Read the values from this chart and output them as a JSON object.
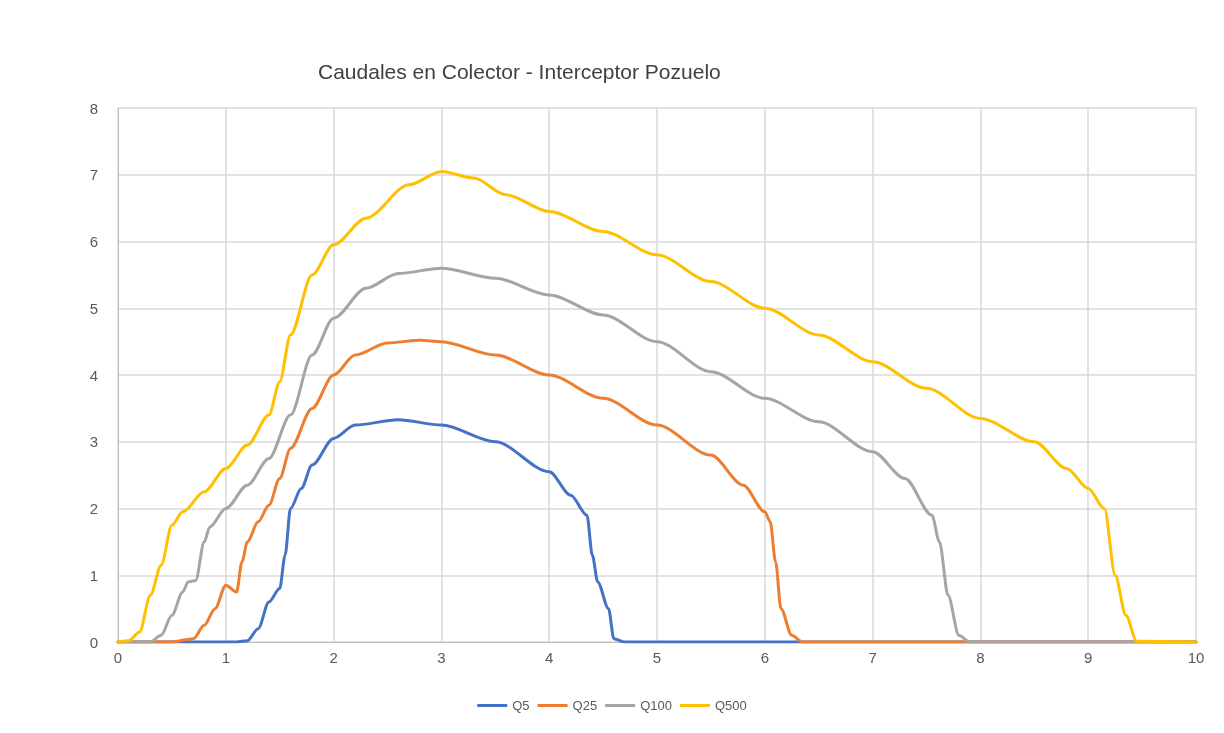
{
  "chart_data": {
    "type": "line",
    "title": "Caudales en Colector - Interceptor Pozuelo",
    "xlim": [
      0,
      10
    ],
    "xticks": [
      0,
      1,
      2,
      3,
      4,
      5,
      6,
      7,
      8,
      9,
      10
    ],
    "ylim": [
      0,
      8
    ],
    "yticks": [
      0,
      1,
      2,
      3,
      4,
      5,
      6,
      7,
      8
    ],
    "grid": true,
    "legend": "bottom",
    "marker": "none",
    "line_style": "solid",
    "series": [
      {
        "name": "Q5",
        "color": "#4472c4",
        "x": [
          0,
          1.1,
          1.2,
          1.3,
          1.4,
          1.5,
          1.55,
          1.6,
          1.7,
          1.8,
          2,
          2.2,
          2.6,
          3,
          3.5,
          4,
          4.2,
          4.35,
          4.4,
          4.45,
          4.55,
          4.6,
          4.7,
          10
        ],
        "values": [
          0,
          0,
          0.02,
          0.2,
          0.6,
          0.8,
          1.3,
          2.0,
          2.3,
          2.65,
          3.05,
          3.25,
          3.33,
          3.25,
          3.0,
          2.55,
          2.2,
          1.9,
          1.3,
          0.9,
          0.5,
          0.05,
          0,
          0
        ]
      },
      {
        "name": "Q25",
        "color": "#ed7d31",
        "x": [
          0,
          0.5,
          0.7,
          0.8,
          0.9,
          1.0,
          1.1,
          1.15,
          1.2,
          1.3,
          1.4,
          1.5,
          1.6,
          1.8,
          2,
          2.2,
          2.5,
          2.8,
          3,
          3.5,
          4,
          4.5,
          5,
          5.5,
          5.8,
          6,
          6.05,
          6.1,
          6.15,
          6.25,
          6.35,
          10
        ],
        "values": [
          0,
          0,
          0.05,
          0.25,
          0.5,
          0.85,
          0.75,
          1.2,
          1.5,
          1.8,
          2.05,
          2.45,
          2.9,
          3.5,
          4.0,
          4.3,
          4.48,
          4.52,
          4.5,
          4.3,
          4.0,
          3.65,
          3.25,
          2.8,
          2.35,
          1.95,
          1.8,
          1.2,
          0.5,
          0.1,
          0,
          0
        ]
      },
      {
        "name": "Q100",
        "color": "#a5a5a5",
        "x": [
          0,
          0.3,
          0.4,
          0.5,
          0.6,
          0.65,
          0.72,
          0.8,
          0.85,
          1,
          1.2,
          1.4,
          1.6,
          1.8,
          2,
          2.3,
          2.6,
          3,
          3.5,
          4,
          4.5,
          5,
          5.5,
          6,
          6.5,
          7,
          7.3,
          7.55,
          7.62,
          7.7,
          7.8,
          7.9,
          10
        ],
        "values": [
          0,
          0,
          0.1,
          0.4,
          0.75,
          0.9,
          0.92,
          1.5,
          1.72,
          2.0,
          2.35,
          2.75,
          3.4,
          4.3,
          4.85,
          5.3,
          5.52,
          5.6,
          5.45,
          5.2,
          4.9,
          4.5,
          4.05,
          3.65,
          3.3,
          2.85,
          2.45,
          1.9,
          1.5,
          0.7,
          0.1,
          0,
          0
        ]
      },
      {
        "name": "Q500",
        "color": "#ffc000",
        "x": [
          0,
          0.1,
          0.2,
          0.3,
          0.4,
          0.5,
          0.6,
          0.8,
          1,
          1.2,
          1.4,
          1.5,
          1.6,
          1.8,
          2,
          2.3,
          2.7,
          3,
          3.3,
          3.6,
          4,
          4.5,
          5,
          5.5,
          6,
          6.5,
          7,
          7.5,
          8,
          8.5,
          8.8,
          9.0,
          9.15,
          9.25,
          9.35,
          9.45,
          10
        ],
        "values": [
          0,
          0.02,
          0.15,
          0.7,
          1.15,
          1.75,
          1.95,
          2.25,
          2.6,
          2.95,
          3.4,
          3.9,
          4.6,
          5.5,
          5.95,
          6.35,
          6.85,
          7.05,
          6.95,
          6.7,
          6.45,
          6.15,
          5.8,
          5.4,
          5.0,
          4.6,
          4.2,
          3.8,
          3.35,
          3.0,
          2.6,
          2.3,
          2.0,
          1.0,
          0.4,
          0.01,
          0
        ]
      }
    ]
  }
}
